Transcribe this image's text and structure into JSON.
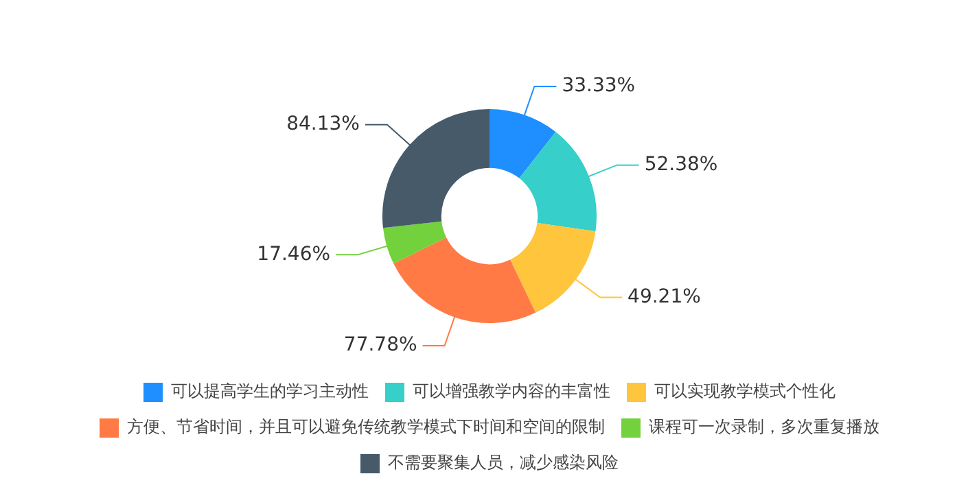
{
  "chart_data": {
    "type": "donut",
    "categories": [
      "可以提高学生的学习主动性",
      "可以增强教学内容的丰富性",
      "可以实现教学模式个性化",
      "方便、节省时间，并且可以避免传统教学模式下时间和空间的限制",
      "课程可一次录制，多次重复播放",
      "不需要聚集人员，减少感染风险"
    ],
    "values": [
      33.33,
      52.38,
      49.21,
      77.78,
      17.46,
      84.13
    ],
    "value_labels": [
      "33.33%",
      "52.38%",
      "49.21%",
      "77.78%",
      "17.46%",
      "84.13%"
    ],
    "colors": [
      "#1f8fff",
      "#36cfc9",
      "#ffc53d",
      "#ff7a45",
      "#73d13d",
      "#465a69"
    ],
    "legend": "bottom"
  }
}
